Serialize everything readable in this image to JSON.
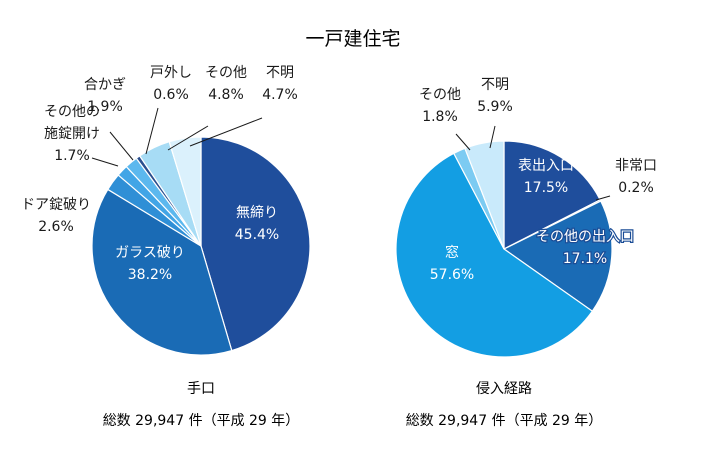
{
  "title": "一戸建住宅",
  "chart_data": [
    {
      "type": "pie",
      "title": "手口",
      "subtitle": "総数 29,947 件（平成 29 年）",
      "slices": [
        {
          "label": "無締り",
          "value": 45.4,
          "value_label": "45.4%",
          "color": "#1f4e9c"
        },
        {
          "label": "ガラス破り",
          "value": 38.2,
          "value_label": "38.2%",
          "color": "#1a6bb5"
        },
        {
          "label": "ドア錠破り",
          "value": 2.6,
          "value_label": "2.6%",
          "color": "#2f8fd6"
        },
        {
          "label": "その他の施錠開け",
          "label_lines": [
            "その他の",
            "施錠開け"
          ],
          "value": 1.7,
          "value_label": "1.7%",
          "color": "#42a5e6"
        },
        {
          "label": "合かぎ",
          "value": 1.9,
          "value_label": "1.9%",
          "color": "#5cb8ee"
        },
        {
          "label": "戸外し",
          "value": 0.6,
          "value_label": "0.6%",
          "color": "#2a4f8f"
        },
        {
          "label": "その他",
          "value": 4.8,
          "value_label": "4.8%",
          "color": "#a7dcf5"
        },
        {
          "label": "不明",
          "value": 4.7,
          "value_label": "4.7%",
          "color": "#dbf1fc"
        }
      ]
    },
    {
      "type": "pie",
      "title": "侵入経路",
      "subtitle": "総数 29,947 件（平成 29 年）",
      "slices": [
        {
          "label": "表出入口",
          "value": 17.5,
          "value_label": "17.5%",
          "color": "#1f4e9c"
        },
        {
          "label": "非常口",
          "value": 0.2,
          "value_label": "0.2%",
          "color": "#102e66"
        },
        {
          "label": "その他の出入口",
          "value": 17.1,
          "value_label": "17.1%",
          "color": "#1a6bb5"
        },
        {
          "label": "窓",
          "value": 57.6,
          "value_label": "57.6%",
          "color": "#139ee3"
        },
        {
          "label": "その他",
          "value": 1.8,
          "value_label": "1.8%",
          "color": "#7ccbf2"
        },
        {
          "label": "不明",
          "value": 5.9,
          "value_label": "5.9%",
          "color": "#c9eafb"
        }
      ]
    }
  ]
}
